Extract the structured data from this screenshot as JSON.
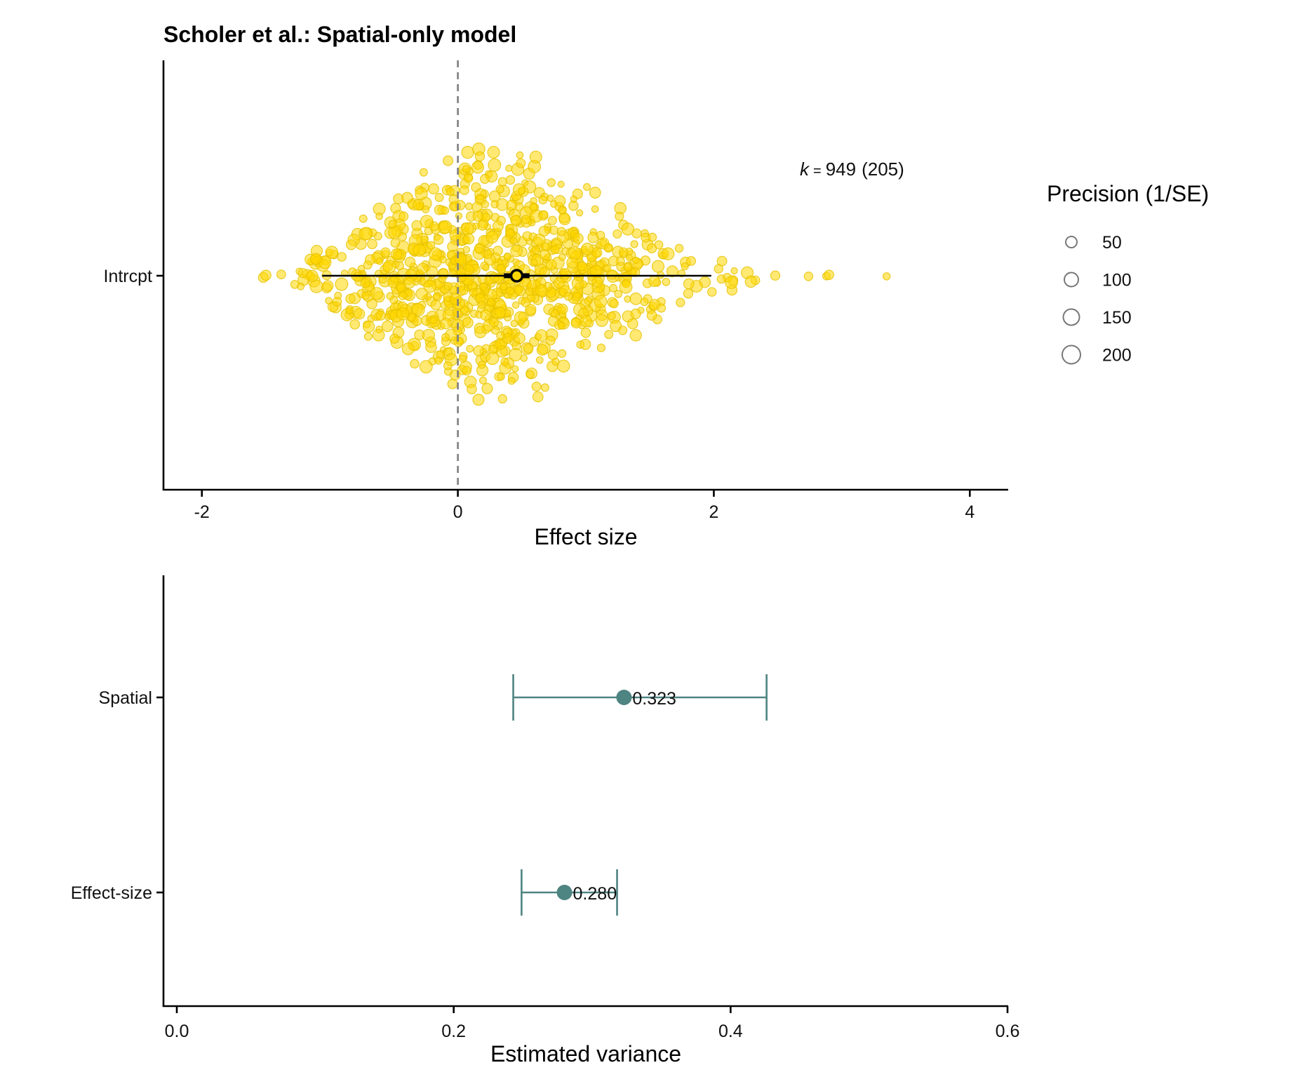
{
  "chart_data": [
    {
      "type": "scatter",
      "subtype": "orchard-beeswarm",
      "title": "Scholer et al.: Spatial-only model",
      "xlabel": "Effect size",
      "ylabel": "",
      "xlim": [
        -2.3,
        4.3
      ],
      "xticks": [
        -2,
        0,
        2,
        4
      ],
      "xtick_labels": [
        "-2",
        "0",
        "2",
        "4"
      ],
      "categories": [
        "Intrcpt"
      ],
      "reference_line": {
        "x": 0,
        "style": "dashed",
        "color": "#7f7f7f"
      },
      "estimate": {
        "category": "Intrcpt",
        "x": 0.46,
        "ci": [
          0.36,
          0.56
        ],
        "pi": [
          -1.06,
          1.98
        ]
      },
      "annotation": {
        "k_symbol": "k",
        "eq": "=",
        "k_value": "949",
        "k_studies": "(205)"
      },
      "points_color": "#FFD700",
      "points_summary": {
        "count": 949,
        "x_values_sample": [
          -1.52,
          -1.5,
          -1.38,
          -1.22,
          -1.05,
          -0.85,
          -0.6,
          -0.3,
          0.0,
          0.2,
          0.46,
          0.8,
          1.1,
          1.32,
          1.6,
          1.9,
          2.1,
          2.3,
          2.48,
          2.74,
          2.88,
          2.9,
          3.35
        ]
      },
      "legend": {
        "title": "Precision (1/SE)",
        "placement": "right",
        "entries": [
          "50",
          "100",
          "150",
          "200"
        ]
      },
      "grid": false
    },
    {
      "type": "scatter",
      "subtype": "dot-errorbar",
      "title": "",
      "xlabel": "Estimated variance",
      "ylabel": "",
      "xlim": [
        0.0,
        0.6
      ],
      "xticks": [
        0.0,
        0.2,
        0.4,
        0.6
      ],
      "xtick_labels": [
        "0.0",
        "0.2",
        "0.4",
        "0.6"
      ],
      "categories": [
        "Spatial",
        "Effect-size"
      ],
      "color": "#4E8482",
      "series": [
        {
          "category": "Spatial",
          "value": 0.323,
          "lower": 0.243,
          "upper": 0.426,
          "label": "0.323"
        },
        {
          "category": "Effect-size",
          "value": 0.28,
          "lower": 0.249,
          "upper": 0.318,
          "label": "0.280"
        }
      ],
      "grid": false
    }
  ]
}
